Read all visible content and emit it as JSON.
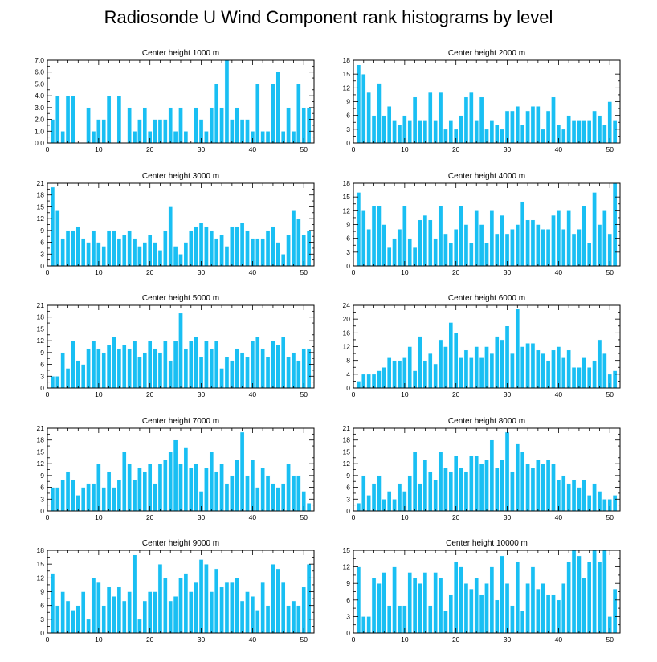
{
  "title": "Radiosonde U Wind Component rank histograms by level",
  "colors": {
    "bar": "#19bff3",
    "bar_edge": "#ffffff",
    "axis": "#000000"
  },
  "chart_data": [
    {
      "type": "bar",
      "title": "Center height 1000 m",
      "x": [
        1,
        2,
        3,
        4,
        5,
        6,
        7,
        8,
        9,
        10,
        11,
        12,
        13,
        14,
        15,
        16,
        17,
        18,
        19,
        20,
        21,
        22,
        23,
        24,
        25,
        26,
        27,
        28,
        29,
        30,
        31,
        32,
        33,
        34,
        35,
        36,
        37,
        38,
        39,
        40,
        41,
        42,
        43,
        44,
        45,
        46,
        47,
        48,
        49,
        50,
        51
      ],
      "values": [
        2,
        4,
        1,
        4,
        4,
        0,
        0,
        3,
        1,
        2,
        2,
        4,
        0,
        4,
        0,
        3,
        1,
        2,
        3,
        1,
        2,
        2,
        2,
        3,
        1,
        3,
        1,
        0,
        3,
        2,
        1,
        3,
        5,
        3,
        7,
        2,
        3,
        2,
        2,
        1,
        5,
        1,
        1,
        5,
        6,
        1,
        3,
        1,
        5,
        3,
        3
      ],
      "xlim": [
        0,
        52
      ],
      "ylim": [
        0,
        7
      ],
      "xticks": [
        "0",
        "10",
        "20",
        "30",
        "40",
        "50"
      ],
      "yticks": [
        "0.0",
        "1.0",
        "2.0",
        "3.0",
        "4.0",
        "5.0",
        "6.0",
        "7.0"
      ]
    },
    {
      "type": "bar",
      "title": "Center height 2000 m",
      "x": [
        1,
        2,
        3,
        4,
        5,
        6,
        7,
        8,
        9,
        10,
        11,
        12,
        13,
        14,
        15,
        16,
        17,
        18,
        19,
        20,
        21,
        22,
        23,
        24,
        25,
        26,
        27,
        28,
        29,
        30,
        31,
        32,
        33,
        34,
        35,
        36,
        37,
        38,
        39,
        40,
        41,
        42,
        43,
        44,
        45,
        46,
        47,
        48,
        49,
        50,
        51
      ],
      "values": [
        17,
        15,
        11,
        6,
        13,
        6,
        8,
        5,
        4,
        6,
        5,
        10,
        5,
        5,
        11,
        5,
        11,
        3,
        5,
        3,
        6,
        10,
        11,
        5,
        10,
        3,
        5,
        4,
        3,
        7,
        7,
        8,
        4,
        7,
        8,
        8,
        3,
        7,
        10,
        4,
        3,
        6,
        5,
        5,
        5,
        5,
        7,
        6,
        4,
        9,
        5
      ],
      "xlim": [
        0,
        52
      ],
      "ylim": [
        0,
        18
      ],
      "xticks": [
        "0",
        "10",
        "20",
        "30",
        "40",
        "50"
      ],
      "yticks": [
        "0",
        "3",
        "6",
        "9",
        "12",
        "15",
        "18"
      ]
    },
    {
      "type": "bar",
      "title": "Center height 3000 m",
      "x": [
        1,
        2,
        3,
        4,
        5,
        6,
        7,
        8,
        9,
        10,
        11,
        12,
        13,
        14,
        15,
        16,
        17,
        18,
        19,
        20,
        21,
        22,
        23,
        24,
        25,
        26,
        27,
        28,
        29,
        30,
        31,
        32,
        33,
        34,
        35,
        36,
        37,
        38,
        39,
        40,
        41,
        42,
        43,
        44,
        45,
        46,
        47,
        48,
        49,
        50,
        51
      ],
      "values": [
        20,
        14,
        7,
        9,
        9,
        10,
        7,
        6,
        9,
        6,
        5,
        9,
        9,
        7,
        8,
        9,
        7,
        5,
        6,
        8,
        6,
        4,
        9,
        15,
        5,
        3,
        6,
        9,
        10,
        11,
        10,
        9,
        7,
        8,
        5,
        10,
        10,
        11,
        9,
        7,
        7,
        7,
        9,
        10,
        6,
        3,
        8,
        14,
        12,
        8,
        9
      ],
      "xlim": [
        0,
        52
      ],
      "ylim": [
        0,
        21
      ],
      "xticks": [
        "0",
        "10",
        "20",
        "30",
        "40",
        "50"
      ],
      "yticks": [
        "0",
        "3",
        "6",
        "9",
        "12",
        "15",
        "18",
        "21"
      ]
    },
    {
      "type": "bar",
      "title": "Center height 4000 m",
      "x": [
        1,
        2,
        3,
        4,
        5,
        6,
        7,
        8,
        9,
        10,
        11,
        12,
        13,
        14,
        15,
        16,
        17,
        18,
        19,
        20,
        21,
        22,
        23,
        24,
        25,
        26,
        27,
        28,
        29,
        30,
        31,
        32,
        33,
        34,
        35,
        36,
        37,
        38,
        39,
        40,
        41,
        42,
        43,
        44,
        45,
        46,
        47,
        48,
        49,
        50,
        51
      ],
      "values": [
        16,
        12,
        8,
        13,
        13,
        9,
        4,
        6,
        8,
        13,
        6,
        4,
        10,
        11,
        10,
        6,
        13,
        7,
        5,
        8,
        13,
        9,
        5,
        12,
        9,
        5,
        12,
        7,
        11,
        7,
        8,
        9,
        14,
        10,
        10,
        9,
        8,
        8,
        11,
        12,
        8,
        12,
        7,
        8,
        13,
        5,
        16,
        9,
        12,
        7,
        18
      ],
      "xlim": [
        0,
        52
      ],
      "ylim": [
        0,
        18
      ],
      "xticks": [
        "0",
        "10",
        "20",
        "30",
        "40",
        "50"
      ],
      "yticks": [
        "0",
        "3",
        "6",
        "9",
        "12",
        "15",
        "18"
      ]
    },
    {
      "type": "bar",
      "title": "Center height 5000 m",
      "x": [
        1,
        2,
        3,
        4,
        5,
        6,
        7,
        8,
        9,
        10,
        11,
        12,
        13,
        14,
        15,
        16,
        17,
        18,
        19,
        20,
        21,
        22,
        23,
        24,
        25,
        26,
        27,
        28,
        29,
        30,
        31,
        32,
        33,
        34,
        35,
        36,
        37,
        38,
        39,
        40,
        41,
        42,
        43,
        44,
        45,
        46,
        47,
        48,
        49,
        50,
        51
      ],
      "values": [
        3,
        3,
        9,
        5,
        12,
        7,
        6,
        10,
        12,
        10,
        9,
        11,
        13,
        10,
        11,
        10,
        12,
        8,
        9,
        12,
        10,
        9,
        12,
        7,
        12,
        19,
        10,
        12,
        13,
        8,
        12,
        10,
        12,
        5,
        8,
        7,
        10,
        9,
        8,
        12,
        13,
        10,
        8,
        12,
        11,
        13,
        8,
        9,
        7,
        10,
        10
      ],
      "xlim": [
        0,
        52
      ],
      "ylim": [
        0,
        21
      ],
      "xticks": [
        "0",
        "10",
        "20",
        "30",
        "40",
        "50"
      ],
      "yticks": [
        "0",
        "3",
        "6",
        "9",
        "12",
        "15",
        "18",
        "21"
      ]
    },
    {
      "type": "bar",
      "title": "Center height 6000 m",
      "x": [
        1,
        2,
        3,
        4,
        5,
        6,
        7,
        8,
        9,
        10,
        11,
        12,
        13,
        14,
        15,
        16,
        17,
        18,
        19,
        20,
        21,
        22,
        23,
        24,
        25,
        26,
        27,
        28,
        29,
        30,
        31,
        32,
        33,
        34,
        35,
        36,
        37,
        38,
        39,
        40,
        41,
        42,
        43,
        44,
        45,
        46,
        47,
        48,
        49,
        50,
        51
      ],
      "values": [
        2,
        4,
        4,
        4,
        5,
        6,
        9,
        8,
        8,
        9,
        12,
        5,
        15,
        8,
        10,
        7,
        14,
        12,
        19,
        16,
        9,
        11,
        9,
        12,
        9,
        12,
        10,
        15,
        14,
        18,
        10,
        23,
        12,
        13,
        13,
        11,
        10,
        8,
        11,
        12,
        9,
        11,
        6,
        6,
        9,
        6,
        8,
        14,
        10,
        4,
        5
      ],
      "xlim": [
        0,
        52
      ],
      "ylim": [
        0,
        24
      ],
      "xticks": [
        "0",
        "10",
        "20",
        "30",
        "40",
        "50"
      ],
      "yticks": [
        "0",
        "4",
        "8",
        "12",
        "16",
        "20",
        "24"
      ]
    },
    {
      "type": "bar",
      "title": "Center height 7000 m",
      "x": [
        1,
        2,
        3,
        4,
        5,
        6,
        7,
        8,
        9,
        10,
        11,
        12,
        13,
        14,
        15,
        16,
        17,
        18,
        19,
        20,
        21,
        22,
        23,
        24,
        25,
        26,
        27,
        28,
        29,
        30,
        31,
        32,
        33,
        34,
        35,
        36,
        37,
        38,
        39,
        40,
        41,
        42,
        43,
        44,
        45,
        46,
        47,
        48,
        49,
        50,
        51
      ],
      "values": [
        6,
        6,
        8,
        10,
        8,
        4,
        6,
        7,
        7,
        12,
        6,
        10,
        6,
        8,
        15,
        12,
        8,
        11,
        10,
        12,
        7,
        12,
        13,
        15,
        18,
        12,
        16,
        11,
        12,
        5,
        11,
        15,
        10,
        12,
        7,
        9,
        13,
        20,
        9,
        13,
        6,
        11,
        9,
        7,
        6,
        7,
        12,
        9,
        9,
        5,
        2
      ],
      "xlim": [
        0,
        52
      ],
      "ylim": [
        0,
        21
      ],
      "xticks": [
        "0",
        "10",
        "20",
        "30",
        "40",
        "50"
      ],
      "yticks": [
        "0",
        "3",
        "6",
        "9",
        "12",
        "15",
        "18",
        "21"
      ]
    },
    {
      "type": "bar",
      "title": "Center height 8000 m",
      "x": [
        1,
        2,
        3,
        4,
        5,
        6,
        7,
        8,
        9,
        10,
        11,
        12,
        13,
        14,
        15,
        16,
        17,
        18,
        19,
        20,
        21,
        22,
        23,
        24,
        25,
        26,
        27,
        28,
        29,
        30,
        31,
        32,
        33,
        34,
        35,
        36,
        37,
        38,
        39,
        40,
        41,
        42,
        43,
        44,
        45,
        46,
        47,
        48,
        49,
        50,
        51
      ],
      "values": [
        2,
        9,
        4,
        7,
        9,
        3,
        5,
        3,
        7,
        5,
        9,
        15,
        7,
        13,
        10,
        8,
        15,
        11,
        10,
        14,
        11,
        10,
        14,
        14,
        12,
        13,
        18,
        11,
        13,
        20,
        10,
        17,
        15,
        12,
        11,
        13,
        12,
        13,
        12,
        8,
        9,
        7,
        8,
        6,
        8,
        4,
        7,
        5,
        3,
        3,
        4
      ],
      "xlim": [
        0,
        52
      ],
      "ylim": [
        0,
        21
      ],
      "xticks": [
        "0",
        "10",
        "20",
        "30",
        "40",
        "50"
      ],
      "yticks": [
        "0",
        "3",
        "6",
        "9",
        "12",
        "15",
        "18",
        "21"
      ]
    },
    {
      "type": "bar",
      "title": "Center height 9000 m",
      "x": [
        1,
        2,
        3,
        4,
        5,
        6,
        7,
        8,
        9,
        10,
        11,
        12,
        13,
        14,
        15,
        16,
        17,
        18,
        19,
        20,
        21,
        22,
        23,
        24,
        25,
        26,
        27,
        28,
        29,
        30,
        31,
        32,
        33,
        34,
        35,
        36,
        37,
        38,
        39,
        40,
        41,
        42,
        43,
        44,
        45,
        46,
        47,
        48,
        49,
        50,
        51
      ],
      "values": [
        13,
        6,
        9,
        7,
        5,
        6,
        9,
        3,
        12,
        11,
        6,
        10,
        8,
        10,
        7,
        9,
        17,
        3,
        7,
        9,
        9,
        15,
        12,
        7,
        8,
        12,
        13,
        9,
        11,
        16,
        15,
        9,
        14,
        10,
        11,
        11,
        12,
        7,
        9,
        8,
        5,
        11,
        6,
        15,
        14,
        11,
        6,
        7,
        6,
        10,
        15
      ],
      "xlim": [
        0,
        52
      ],
      "ylim": [
        0,
        18
      ],
      "xticks": [
        "0",
        "10",
        "20",
        "30",
        "40",
        "50"
      ],
      "yticks": [
        "0",
        "3",
        "6",
        "9",
        "12",
        "15",
        "18"
      ]
    },
    {
      "type": "bar",
      "title": "Center height 10000 m",
      "x": [
        1,
        2,
        3,
        4,
        5,
        6,
        7,
        8,
        9,
        10,
        11,
        12,
        13,
        14,
        15,
        16,
        17,
        18,
        19,
        20,
        21,
        22,
        23,
        24,
        25,
        26,
        27,
        28,
        29,
        30,
        31,
        32,
        33,
        34,
        35,
        36,
        37,
        38,
        39,
        40,
        41,
        42,
        43,
        44,
        45,
        46,
        47,
        48,
        49,
        50,
        51
      ],
      "values": [
        12,
        3,
        3,
        10,
        9,
        11,
        5,
        12,
        5,
        5,
        11,
        10,
        9,
        11,
        5,
        11,
        10,
        4,
        7,
        13,
        12,
        9,
        8,
        10,
        7,
        9,
        12,
        6,
        14,
        9,
        5,
        13,
        4,
        9,
        12,
        8,
        9,
        7,
        7,
        6,
        9,
        13,
        15,
        14,
        10,
        13,
        15,
        13,
        15,
        3,
        8
      ],
      "xlim": [
        0,
        52
      ],
      "ylim": [
        0,
        15
      ],
      "xticks": [
        "0",
        "10",
        "20",
        "30",
        "40",
        "50"
      ],
      "yticks": [
        "0",
        "3",
        "6",
        "9",
        "12",
        "15"
      ]
    }
  ]
}
